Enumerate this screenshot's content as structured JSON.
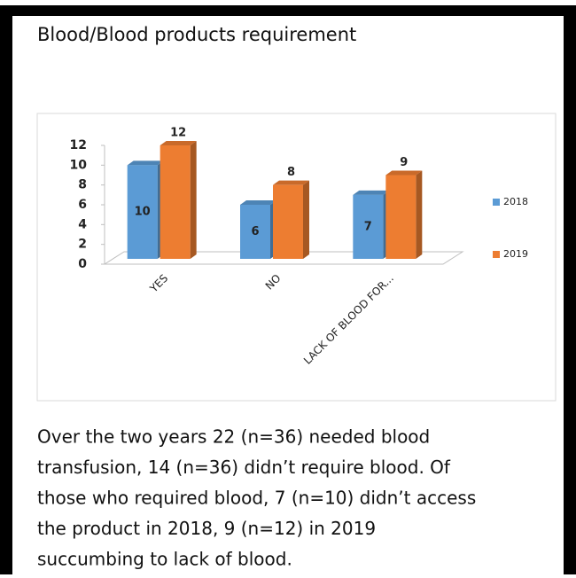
{
  "heading": "Blood/Blood products requirement",
  "chart_data": {
    "type": "bar3d",
    "categories": [
      "YES",
      "NO",
      "LACK OF BLOOD FOR..."
    ],
    "series": [
      {
        "name": "2018",
        "color": "#5b9bd5",
        "values": [
          10,
          6,
          7
        ]
      },
      {
        "name": "2019",
        "color": "#ed7d31",
        "values": [
          12,
          8,
          9
        ]
      }
    ],
    "ylim": [
      0,
      12
    ],
    "yticks": [
      0,
      2,
      4,
      6,
      8,
      10,
      12
    ],
    "grid": false,
    "legend": "right"
  },
  "paragraph": [
    "Over the two years 22 (n=36) needed blood",
    "transfusion, 14 (n=36) didn’t require blood. Of",
    "those who required blood, 7 (n=10) didn’t access",
    "the product in 2018,  9 (n=12) in 2019",
    "succumbing to lack of blood."
  ]
}
